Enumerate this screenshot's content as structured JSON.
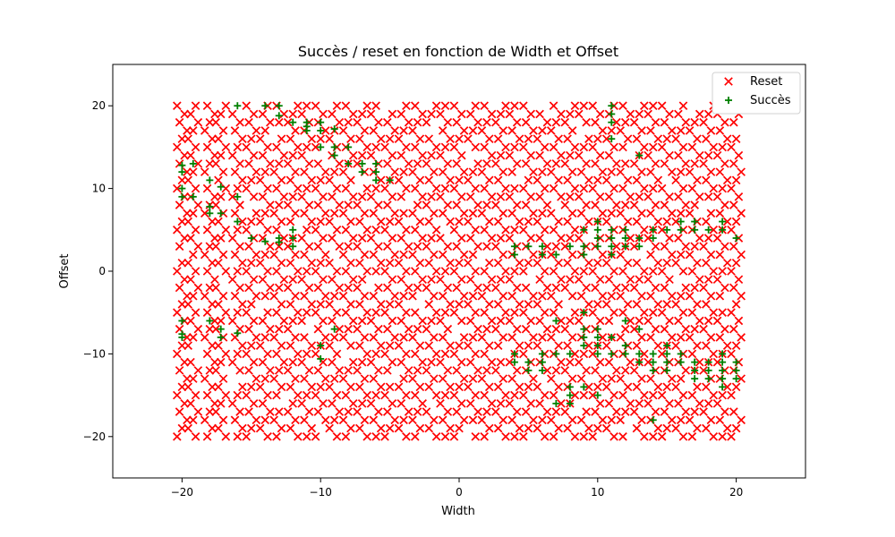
{
  "chart_data": {
    "type": "scatter",
    "title": "Succès / reset en fonction de Width et Offset",
    "xlabel": "Width",
    "ylabel": "Offset",
    "xlim": [
      -25,
      25
    ],
    "ylim": [
      -25,
      25
    ],
    "xticks": [
      -20,
      -10,
      0,
      10,
      20
    ],
    "yticks": [
      -20,
      -10,
      0,
      10,
      20
    ],
    "x_tick_labels": [
      "−20",
      "−10",
      "0",
      "10",
      "20"
    ],
    "y_tick_labels": [
      "−20",
      "−10",
      "0",
      "10",
      "20"
    ],
    "grid": false,
    "legend_position": "top-right",
    "series": [
      {
        "name": "Reset",
        "marker": "x",
        "color": "#ff0000",
        "generator": {
          "x_columns": [
            -20,
            -19.2,
            -18,
            -17.2,
            -16,
            -15,
            -14,
            -13,
            -12,
            -11,
            -10,
            -9,
            -8,
            -7,
            -6,
            -5,
            -4,
            -3,
            -2,
            -1,
            0,
            1,
            2,
            3,
            4,
            5,
            6,
            7,
            8,
            9,
            10,
            11,
            12,
            13,
            14,
            15,
            16,
            17,
            18,
            19,
            20
          ],
          "y_min": -20,
          "y_max": 20,
          "y_step": 1
        }
      },
      {
        "name": "Succès",
        "marker": "+",
        "color": "#008000",
        "points": [
          [
            -20,
            12.8
          ],
          [
            -20,
            12
          ],
          [
            -20,
            10
          ],
          [
            -20,
            9
          ],
          [
            -19.2,
            13
          ],
          [
            -19.2,
            9
          ],
          [
            -20,
            -6
          ],
          [
            -20,
            -7.6
          ],
          [
            -20,
            -8
          ],
          [
            -18,
            11
          ],
          [
            -18,
            7.8
          ],
          [
            -18,
            7
          ],
          [
            -17.2,
            10.2
          ],
          [
            -17.2,
            7
          ],
          [
            -18,
            -6
          ],
          [
            -17.2,
            -7
          ],
          [
            -17.2,
            -8
          ],
          [
            -16,
            20
          ],
          [
            -16,
            9
          ],
          [
            -16,
            6
          ],
          [
            -16,
            -7.5
          ],
          [
            -15,
            4
          ],
          [
            -14,
            3.6
          ],
          [
            -14,
            20
          ],
          [
            -13,
            20
          ],
          [
            -13,
            18.8
          ],
          [
            -13,
            4
          ],
          [
            -13,
            3.5
          ],
          [
            -12,
            18
          ],
          [
            -12,
            5
          ],
          [
            -12,
            4
          ],
          [
            -12,
            3
          ],
          [
            -11,
            18
          ],
          [
            -11,
            17.5
          ],
          [
            -11,
            17
          ],
          [
            -10,
            18
          ],
          [
            -10,
            17
          ],
          [
            -10,
            15
          ],
          [
            -10,
            -9
          ],
          [
            -10,
            -10.6
          ],
          [
            -9,
            17.2
          ],
          [
            -9,
            15
          ],
          [
            -9,
            14
          ],
          [
            -9,
            -7
          ],
          [
            -8,
            15
          ],
          [
            -8,
            13
          ],
          [
            -7,
            13
          ],
          [
            -7,
            12
          ],
          [
            -6,
            13
          ],
          [
            -6,
            12
          ],
          [
            -6,
            11
          ],
          [
            -5,
            11
          ],
          [
            4,
            3
          ],
          [
            4,
            2
          ],
          [
            4,
            -10
          ],
          [
            4,
            -11
          ],
          [
            5,
            3
          ],
          [
            5,
            -11
          ],
          [
            5,
            -12
          ],
          [
            6,
            3
          ],
          [
            6,
            2
          ],
          [
            6,
            -10
          ],
          [
            6,
            -11
          ],
          [
            6,
            -12
          ],
          [
            7,
            2
          ],
          [
            7,
            -6
          ],
          [
            7,
            -10
          ],
          [
            7,
            -16
          ],
          [
            8,
            3
          ],
          [
            8,
            -10
          ],
          [
            8,
            -14
          ],
          [
            8,
            -15
          ],
          [
            8,
            -16
          ],
          [
            9,
            5
          ],
          [
            9,
            3
          ],
          [
            9,
            2
          ],
          [
            9,
            -5
          ],
          [
            9,
            -7
          ],
          [
            9,
            -8
          ],
          [
            9,
            -9
          ],
          [
            9,
            -14
          ],
          [
            10,
            6
          ],
          [
            10,
            5
          ],
          [
            10,
            4
          ],
          [
            10,
            3
          ],
          [
            10,
            -7
          ],
          [
            10,
            -8
          ],
          [
            10,
            -9
          ],
          [
            10,
            -10
          ],
          [
            10,
            -15
          ],
          [
            11,
            20
          ],
          [
            11,
            19
          ],
          [
            11,
            18
          ],
          [
            11,
            16
          ],
          [
            11,
            5
          ],
          [
            11,
            4
          ],
          [
            11,
            3
          ],
          [
            11,
            2
          ],
          [
            11,
            -8
          ],
          [
            11,
            -10
          ],
          [
            12,
            5
          ],
          [
            12,
            4
          ],
          [
            12,
            3
          ],
          [
            12,
            -6
          ],
          [
            12,
            -9
          ],
          [
            12,
            -10
          ],
          [
            13,
            14
          ],
          [
            13,
            4
          ],
          [
            13,
            3
          ],
          [
            13,
            -7
          ],
          [
            13,
            -10
          ],
          [
            13,
            -11
          ],
          [
            14,
            5
          ],
          [
            14,
            4
          ],
          [
            14,
            -10
          ],
          [
            14,
            -11
          ],
          [
            14,
            -12
          ],
          [
            14,
            -18
          ],
          [
            15,
            5
          ],
          [
            15,
            -9
          ],
          [
            15,
            -10
          ],
          [
            15,
            -11
          ],
          [
            15,
            -12
          ],
          [
            16,
            6
          ],
          [
            16,
            5
          ],
          [
            16,
            -10
          ],
          [
            16,
            -11
          ],
          [
            17,
            6
          ],
          [
            17,
            5
          ],
          [
            17,
            -11
          ],
          [
            17,
            -12
          ],
          [
            17,
            -13
          ],
          [
            18,
            5
          ],
          [
            18,
            -11
          ],
          [
            18,
            -12
          ],
          [
            18,
            -13
          ],
          [
            19,
            6
          ],
          [
            19,
            5
          ],
          [
            19,
            -10
          ],
          [
            19,
            -11
          ],
          [
            19,
            -12
          ],
          [
            19,
            -13
          ],
          [
            19,
            -14
          ],
          [
            20,
            4
          ],
          [
            20,
            -11
          ],
          [
            20,
            -12
          ],
          [
            20,
            -13
          ]
        ]
      }
    ]
  }
}
